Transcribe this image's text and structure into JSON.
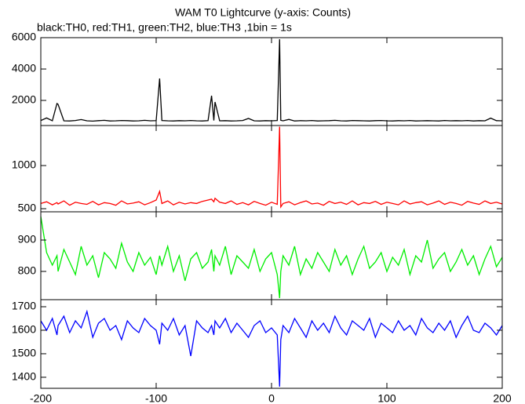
{
  "title": "WAM T0 Lightcurve (y-axis: Counts)",
  "subtitle": "black:TH0, red:TH1, green:TH2, blue:TH3 ,1bin = 1s",
  "chart_data": [
    {
      "type": "line",
      "xlim": [
        -200,
        200
      ],
      "ylim": [
        400,
        6000
      ],
      "yticks": [
        2000,
        4000,
        6000
      ],
      "x": [
        -200,
        -195,
        -190,
        -186,
        -185,
        -180,
        -175,
        -170,
        -165,
        -160,
        -155,
        -150,
        -145,
        -140,
        -135,
        -130,
        -125,
        -120,
        -115,
        -110,
        -105,
        -100,
        -97,
        -95,
        -90,
        -85,
        -80,
        -75,
        -70,
        -65,
        -60,
        -55,
        -52,
        -50,
        -49,
        -45,
        -40,
        -35,
        -30,
        -25,
        -20,
        -15,
        -10,
        -5,
        0,
        5,
        7,
        8,
        10,
        15,
        20,
        25,
        30,
        35,
        40,
        45,
        50,
        55,
        60,
        65,
        70,
        75,
        80,
        85,
        90,
        95,
        100,
        105,
        110,
        115,
        120,
        125,
        130,
        135,
        140,
        145,
        150,
        155,
        160,
        165,
        170,
        175,
        180,
        185,
        190,
        195,
        200
      ],
      "series": [
        {
          "color": "#000000",
          "values": [
            720,
            880,
            700,
            1800,
            1750,
            700,
            690,
            720,
            780,
            700,
            680,
            710,
            730,
            690,
            700,
            720,
            710,
            690,
            700,
            730,
            700,
            710,
            3400,
            720,
            700,
            690,
            710,
            700,
            720,
            700,
            690,
            710,
            2300,
            720,
            1900,
            700,
            710,
            690,
            700,
            720,
            850,
            700,
            690,
            710,
            700,
            720,
            5900,
            730,
            700,
            790,
            690,
            710,
            700,
            720,
            690,
            700,
            710,
            730,
            700,
            690,
            720,
            710,
            700,
            690,
            710,
            720,
            700,
            690,
            710,
            700,
            720,
            690,
            700,
            710,
            700,
            690,
            720,
            700,
            710,
            700,
            720,
            690,
            710,
            700,
            870,
            710,
            700
          ]
        }
      ]
    },
    {
      "type": "line",
      "xlim": [
        -200,
        200
      ],
      "ylim": [
        464,
        1464
      ],
      "yticks": [
        500,
        1000
      ],
      "x": [
        -200,
        -195,
        -190,
        -186,
        -185,
        -180,
        -175,
        -170,
        -165,
        -160,
        -155,
        -150,
        -145,
        -140,
        -135,
        -130,
        -125,
        -120,
        -115,
        -110,
        -105,
        -100,
        -97,
        -95,
        -90,
        -85,
        -80,
        -75,
        -70,
        -65,
        -60,
        -55,
        -52,
        -50,
        -49,
        -45,
        -40,
        -35,
        -30,
        -25,
        -20,
        -15,
        -10,
        -5,
        0,
        5,
        7,
        8,
        10,
        15,
        20,
        25,
        30,
        35,
        40,
        45,
        50,
        55,
        60,
        65,
        70,
        75,
        80,
        85,
        90,
        95,
        100,
        105,
        110,
        115,
        120,
        125,
        130,
        135,
        140,
        145,
        150,
        155,
        160,
        165,
        170,
        175,
        180,
        185,
        190,
        195,
        200
      ],
      "series": [
        {
          "color": "#ff0000",
          "values": [
            560,
            580,
            545,
            570,
            555,
            590,
            540,
            575,
            560,
            550,
            585,
            545,
            570,
            560,
            540,
            590,
            555,
            565,
            580,
            545,
            570,
            600,
            700,
            560,
            590,
            545,
            575,
            555,
            570,
            560,
            585,
            600,
            610,
            580,
            620,
            575,
            560,
            590,
            550,
            570,
            545,
            585,
            560,
            540,
            575,
            550,
            1450,
            520,
            560,
            580,
            545,
            570,
            590,
            555,
            565,
            540,
            585,
            560,
            575,
            550,
            590,
            545,
            570,
            560,
            585,
            550,
            575,
            560,
            545,
            590,
            555,
            570,
            580,
            545,
            565,
            590,
            550,
            575,
            560,
            540,
            585,
            565,
            550,
            590,
            560,
            575,
            555
          ]
        }
      ]
    },
    {
      "type": "line",
      "xlim": [
        -200,
        200
      ],
      "ylim": [
        710,
        990
      ],
      "yticks": [
        800,
        900
      ],
      "x": [
        -200,
        -195,
        -190,
        -186,
        -185,
        -180,
        -175,
        -170,
        -165,
        -160,
        -155,
        -150,
        -145,
        -140,
        -135,
        -130,
        -125,
        -120,
        -115,
        -110,
        -105,
        -100,
        -97,
        -95,
        -90,
        -85,
        -80,
        -75,
        -70,
        -65,
        -60,
        -55,
        -52,
        -50,
        -49,
        -45,
        -40,
        -35,
        -30,
        -25,
        -20,
        -15,
        -10,
        -5,
        0,
        5,
        7,
        8,
        10,
        15,
        20,
        25,
        30,
        35,
        40,
        45,
        50,
        55,
        60,
        65,
        70,
        75,
        80,
        85,
        90,
        95,
        100,
        105,
        110,
        115,
        120,
        125,
        130,
        135,
        140,
        145,
        150,
        155,
        160,
        165,
        170,
        175,
        180,
        185,
        190,
        195,
        200
      ],
      "series": [
        {
          "color": "#00ee00",
          "values": [
            975,
            860,
            820,
            850,
            800,
            870,
            830,
            790,
            880,
            820,
            850,
            780,
            860,
            840,
            810,
            890,
            830,
            800,
            860,
            820,
            845,
            790,
            850,
            820,
            880,
            800,
            850,
            770,
            840,
            860,
            810,
            830,
            870,
            800,
            850,
            820,
            880,
            790,
            850,
            830,
            810,
            870,
            800,
            840,
            860,
            790,
            715,
            800,
            850,
            820,
            880,
            790,
            840,
            810,
            860,
            830,
            800,
            870,
            820,
            850,
            790,
            840,
            880,
            810,
            830,
            860,
            800,
            845,
            820,
            870,
            790,
            850,
            830,
            900,
            810,
            840,
            860,
            800,
            830,
            870,
            820,
            850,
            790,
            840,
            880,
            815,
            845
          ]
        }
      ]
    },
    {
      "type": "line",
      "xlim": [
        -200,
        200
      ],
      "ylim": [
        1353,
        1730
      ],
      "yticks": [
        1400,
        1500,
        1600,
        1700
      ],
      "xticks": [
        -200,
        -100,
        0,
        100,
        200
      ],
      "x": [
        -200,
        -195,
        -190,
        -186,
        -185,
        -180,
        -175,
        -170,
        -165,
        -160,
        -155,
        -150,
        -145,
        -140,
        -135,
        -130,
        -125,
        -120,
        -115,
        -110,
        -105,
        -100,
        -97,
        -95,
        -90,
        -85,
        -80,
        -75,
        -70,
        -65,
        -60,
        -55,
        -52,
        -50,
        -49,
        -45,
        -40,
        -35,
        -30,
        -25,
        -20,
        -15,
        -10,
        -5,
        0,
        5,
        7,
        8,
        10,
        15,
        20,
        25,
        30,
        35,
        40,
        45,
        50,
        55,
        60,
        65,
        70,
        75,
        80,
        85,
        90,
        95,
        100,
        105,
        110,
        115,
        120,
        125,
        130,
        135,
        140,
        145,
        150,
        155,
        160,
        165,
        170,
        175,
        180,
        185,
        190,
        195,
        200
      ],
      "series": [
        {
          "color": "#0000ff",
          "values": [
            1640,
            1600,
            1650,
            1580,
            1620,
            1660,
            1590,
            1640,
            1610,
            1680,
            1570,
            1630,
            1650,
            1600,
            1620,
            1560,
            1640,
            1610,
            1590,
            1650,
            1620,
            1600,
            1540,
            1630,
            1600,
            1650,
            1580,
            1620,
            1490,
            1640,
            1610,
            1590,
            1620,
            1580,
            1640,
            1610,
            1650,
            1590,
            1630,
            1600,
            1570,
            1620,
            1640,
            1590,
            1610,
            1580,
            1360,
            1560,
            1620,
            1590,
            1650,
            1610,
            1570,
            1640,
            1600,
            1630,
            1590,
            1660,
            1610,
            1580,
            1640,
            1620,
            1600,
            1650,
            1570,
            1630,
            1610,
            1590,
            1640,
            1600,
            1620,
            1580,
            1650,
            1610,
            1590,
            1630,
            1600,
            1640,
            1570,
            1620,
            1660,
            1600,
            1590,
            1630,
            1610,
            1580,
            1620
          ]
        }
      ]
    }
  ]
}
